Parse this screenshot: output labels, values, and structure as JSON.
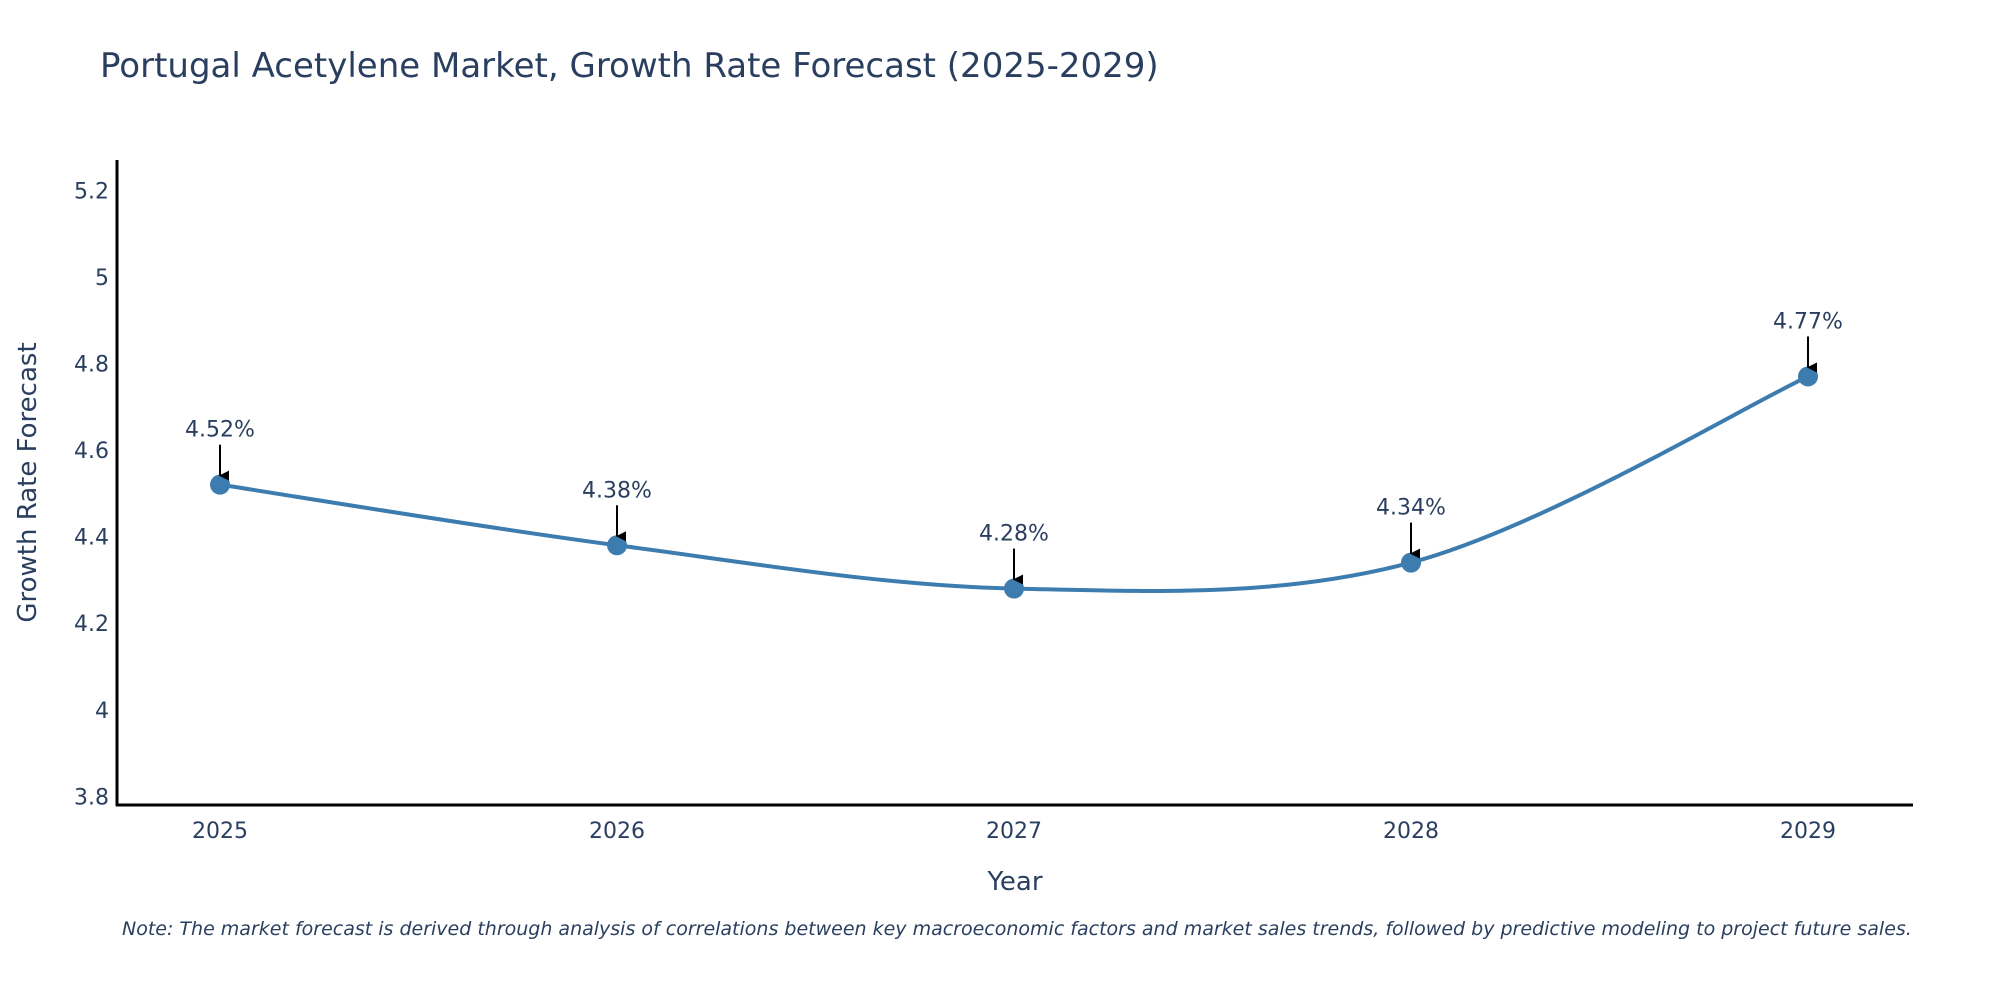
{
  "chart_data": {
    "type": "line",
    "title": "Portugal Acetylene Market, Growth Rate Forecast (2025-2029)",
    "xlabel": "Year",
    "ylabel": "Growth Rate Forecast",
    "categories": [
      "2025",
      "2026",
      "2027",
      "2028",
      "2029"
    ],
    "series": [
      {
        "name": "Growth Rate Forecast",
        "values": [
          4.52,
          4.38,
          4.28,
          4.34,
          4.77
        ],
        "labels": [
          "4.52%",
          "4.38%",
          "4.28%",
          "4.34%",
          "4.77%"
        ],
        "color": "#3d7caf"
      }
    ],
    "ylim": [
      3.78,
      5.27
    ],
    "yticks": [
      3.8,
      4,
      4.2,
      4.4,
      4.6,
      4.8,
      5,
      5.2
    ],
    "ytick_labels": [
      "3.8",
      "4",
      "4.2",
      "4.4",
      "4.6",
      "4.8",
      "5",
      "5.2"
    ],
    "grid": false,
    "annotation_arrows": true
  },
  "note": "Note: The market forecast is derived through analysis of correlations between key macroeconomic factors and market sales trends, followed by predictive modeling to project future sales.",
  "colors": {
    "line": "#3d7caf",
    "text": "#2a3f5f",
    "axis": "#000000"
  }
}
